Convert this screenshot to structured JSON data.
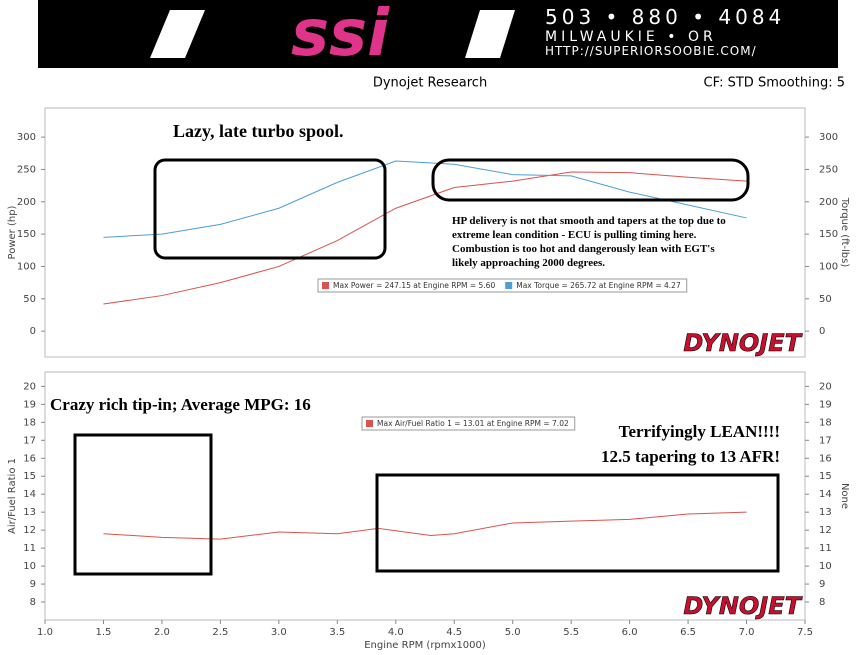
{
  "header": {
    "logo": "ssi",
    "phone": "503 • 880 • 4084",
    "city": "MILWAUKIE • OR",
    "url": "HTTP://SUPERIORSOOBIE.COM/",
    "left_caption": "Dynojet Research",
    "right_caption": "CF: STD Smoothing: 5"
  },
  "chart_data": [
    {
      "type": "line",
      "ylabel": "Power (hp)",
      "y2label": "Torque (ft-lbs)",
      "brand": "DYNOJET",
      "x": [
        1.5,
        2,
        2.5,
        3,
        3.5,
        4,
        4.5,
        5,
        5.5,
        6,
        6.5,
        7
      ],
      "series": [
        {
          "name": "Max Power = 247.15 at Engine RPM = 5.60",
          "color": "#d9534f",
          "values": [
            42,
            55,
            75,
            100,
            140,
            190,
            222,
            232,
            246,
            245,
            238,
            232
          ]
        },
        {
          "name": "Max Torque = 265.72 at Engine RPM = 4.27",
          "color": "#4a9fd5",
          "axis": "y2",
          "values": [
            145,
            150,
            165,
            190,
            230,
            263,
            258,
            242,
            240,
            215,
            195,
            175
          ]
        }
      ],
      "xlim": [
        1.0,
        7.5
      ],
      "ylim": [
        -40,
        345
      ],
      "yticks": [
        0,
        50,
        100,
        150,
        200,
        250,
        300
      ],
      "y2lim": [
        -40,
        345
      ],
      "y2ticks": [
        0,
        50,
        100,
        150,
        200,
        250,
        300
      ],
      "annotations": [
        [
          "Lazy, late turbo spool."
        ],
        [
          "HP delivery is not that smooth and tapers at the top due to",
          "extreme lean condition - ECU is pulling timing here.",
          "Combustion is too hot and dangerously lean with EGT's",
          "likely approaching 2000 degrees."
        ]
      ]
    },
    {
      "type": "line",
      "ylabel": "Air/Fuel Ratio 1",
      "y2label": "None",
      "xlabel": "Engine RPM (rpmx1000)",
      "brand": "DYNOJET",
      "x": [
        1.5,
        2,
        2.5,
        3,
        3.5,
        3.85,
        4.3,
        4.5,
        5,
        5.5,
        6,
        6.5,
        7
      ],
      "series": [
        {
          "name": "Max Air/Fuel Ratio 1 = 13.01 at Engine RPM = 7.02",
          "color": "#d9534f",
          "values": [
            11.8,
            11.6,
            11.5,
            11.9,
            11.8,
            12.1,
            11.7,
            11.8,
            12.4,
            12.5,
            12.6,
            12.9,
            13.0
          ]
        }
      ],
      "xlim": [
        1.0,
        7.5
      ],
      "xticks": [
        {
          "value": 1,
          "label": "1.0"
        },
        1.5,
        {
          "value": 2,
          "label": "2.0"
        },
        2.5,
        {
          "value": 3,
          "label": "3.0"
        },
        3.5,
        {
          "value": 4,
          "label": "4.0"
        },
        4.5,
        {
          "value": 5,
          "label": "5.0"
        },
        5.5,
        {
          "value": 6,
          "label": "6.0"
        },
        6.5,
        {
          "value": 7,
          "label": "7.0"
        },
        7.5
      ],
      "ylim": [
        7,
        20.8
      ],
      "yticks": [
        8,
        9,
        10,
        11,
        12,
        13,
        14,
        15,
        16,
        17,
        18,
        19,
        20
      ],
      "y2lim": [
        7,
        20.8
      ],
      "y2ticks": [
        8,
        9,
        10,
        11,
        12,
        13,
        14,
        15,
        16,
        17,
        18,
        19,
        20
      ],
      "annotations": [
        [
          "Crazy rich tip-in; Average MPG: 16"
        ],
        [
          "Terrifyingly LEAN!!!!",
          "12.5 tapering to 13 AFR!"
        ]
      ]
    }
  ]
}
